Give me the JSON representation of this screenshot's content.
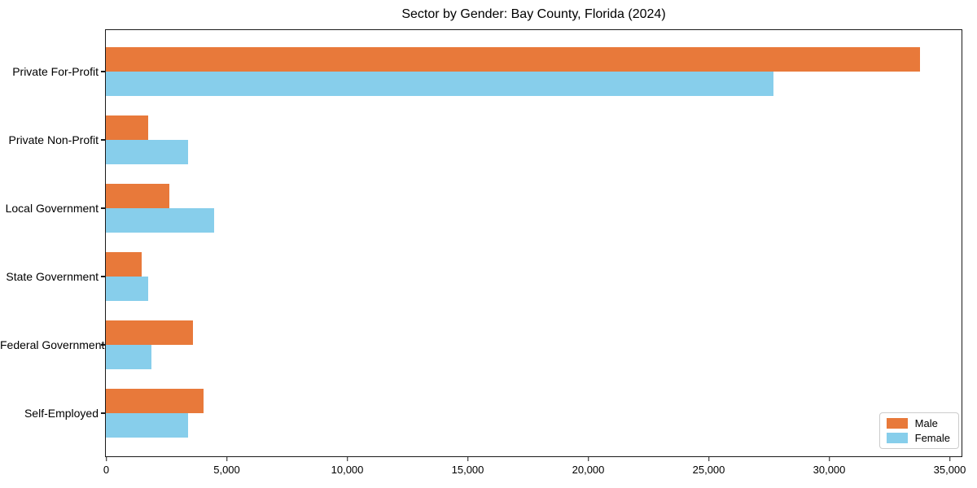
{
  "title": "Sector by Gender: Bay County, Florida (2024)",
  "chart_data": {
    "type": "bar",
    "orientation": "horizontal",
    "title": "Sector by Gender: Bay County, Florida (2024)",
    "categories": [
      "Private For-Profit",
      "Private Non-Profit",
      "Local Government",
      "State Government",
      "Federal Government",
      "Self-Employed"
    ],
    "series": [
      {
        "name": "Male",
        "color": "#e8793a",
        "values": [
          33800,
          1750,
          2650,
          1500,
          3600,
          4050
        ]
      },
      {
        "name": "Female",
        "color": "#87ceeb",
        "values": [
          27700,
          3400,
          4500,
          1750,
          1900,
          3400
        ]
      }
    ],
    "xlabel": "",
    "ylabel": "",
    "xlim": [
      0,
      35000
    ],
    "x_ticks": [
      0,
      5000,
      10000,
      15000,
      20000,
      25000,
      30000,
      35000
    ],
    "x_tick_labels": [
      "0",
      "5,000",
      "10,000",
      "15,000",
      "20,000",
      "25,000",
      "30,000",
      "35,000"
    ],
    "grid": false,
    "legend_position": "lower right"
  }
}
